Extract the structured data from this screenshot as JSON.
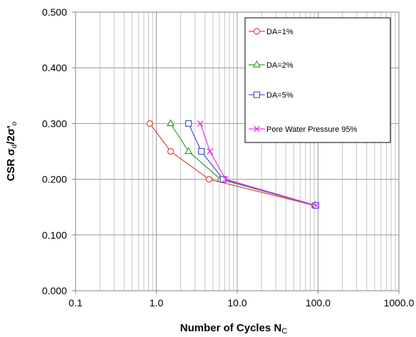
{
  "chart_data": {
    "type": "scatter",
    "x_scale": "log",
    "xlim": [
      0.1,
      1000
    ],
    "ylim": [
      0,
      0.5
    ],
    "x_ticks": [
      "0.1",
      "1.0",
      "10.0",
      "100.0",
      "1000.0"
    ],
    "y_ticks": [
      "0.000",
      "0.100",
      "0.200",
      "0.300",
      "0.400",
      "0.500"
    ],
    "xlabel": "Number of Cycles N",
    "xlabel_sub": "C",
    "ylabel": "CSR σ",
    "ylabel_sub": "d",
    "ylabel_rest": "/2σ'",
    "ylabel_sub2": "o",
    "grid": true,
    "legend_position": "top-right",
    "series": [
      {
        "name": "DA=1%",
        "color": "#e8413c",
        "marker": "circle",
        "x": [
          0.83,
          1.5,
          4.5,
          90
        ],
        "y": [
          0.3,
          0.25,
          0.2,
          0.153
        ]
      },
      {
        "name": "DA=2%",
        "color": "#2ea12e",
        "marker": "triangle",
        "x": [
          1.5,
          2.5,
          6.2,
          92
        ],
        "y": [
          0.3,
          0.25,
          0.2,
          0.153
        ]
      },
      {
        "name": "DA=5%",
        "color": "#4a52d9",
        "marker": "square",
        "x": [
          2.5,
          3.6,
          6.7,
          94
        ],
        "y": [
          0.3,
          0.25,
          0.2,
          0.153
        ]
      },
      {
        "name": "Pore Water Pressure 95%",
        "color": "#ee33ee",
        "marker": "x",
        "x": [
          3.5,
          4.6,
          7.2,
          95
        ],
        "y": [
          0.3,
          0.25,
          0.2,
          0.153
        ]
      }
    ]
  }
}
